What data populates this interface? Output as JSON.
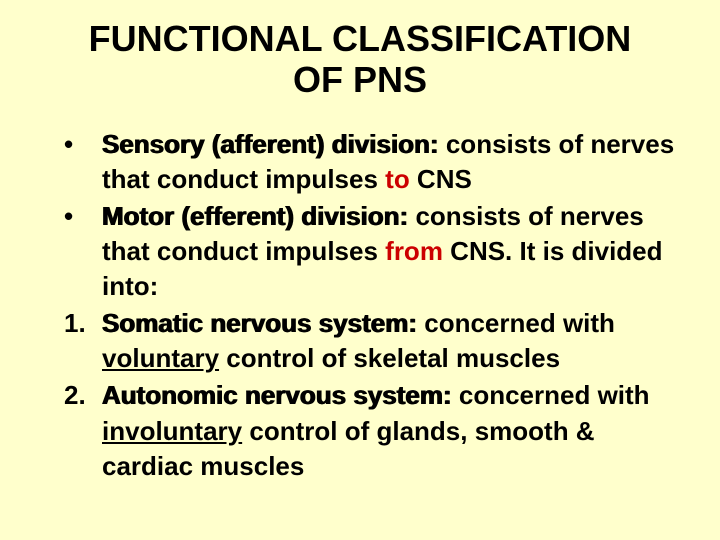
{
  "background_color": "#ffffcc",
  "text_color": "#000000",
  "accent_color": "#cc0000",
  "title_fontsize": 36,
  "body_fontsize": 26,
  "title_line1": "FUNCTIONAL CLASSIFICATION",
  "title_line2": "OF PNS",
  "items": [
    {
      "marker": "•",
      "term": "Sensory (afferent) division:",
      "rest1": " consists of nerves that conduct impulses ",
      "dir": "to",
      "rest2": " CNS"
    },
    {
      "marker": "•",
      "term": "Motor (efferent) division:",
      "rest1": " consists of nerves that conduct impulses ",
      "dir": "from",
      "rest2": " CNS. It is divided into:"
    },
    {
      "marker": "1.",
      "term": "Somatic nervous system:",
      "rest1": " concerned with ",
      "ul": "voluntary",
      "rest2": " control of skeletal muscles"
    },
    {
      "marker": "2.",
      "term": "Autonomic nervous system:",
      "rest1": " concerned with ",
      "ul": "involuntary",
      "rest2": " control of glands, smooth & cardiac muscles"
    }
  ]
}
